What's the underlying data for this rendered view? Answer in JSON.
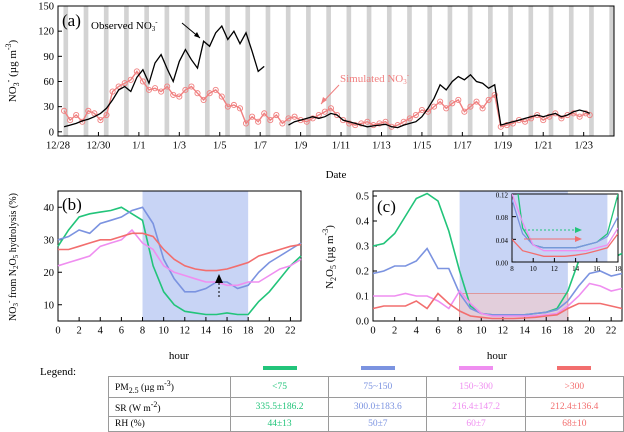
{
  "chart_data": [
    {
      "panel": "(a)",
      "type": "line",
      "xlabel": "Date",
      "ylabel": "NO3- (µg m-3)",
      "ylim": [
        -5,
        150
      ],
      "yticks": [
        0,
        30,
        60,
        90,
        120,
        150
      ],
      "xlim": [
        0,
        27.5
      ],
      "xtick_labels": [
        "12/28",
        "12/30",
        "1/1",
        "1/3",
        "1/5",
        "1/7",
        "1/9",
        "1/11",
        "1/13",
        "1/15",
        "1/17",
        "1/19",
        "1/21",
        "1/23"
      ],
      "xtick_values": [
        0,
        2,
        4,
        6,
        8,
        10,
        12,
        14,
        16,
        18,
        20,
        22,
        24,
        26
      ],
      "annotations": [
        "Observed NO3-",
        "Simulated NO3-"
      ],
      "series": [
        {
          "name": "Observed NO3-",
          "color": "#000000",
          "x": [
            0.3,
            0.6,
            0.9,
            1.2,
            1.5,
            1.8,
            2.1,
            2.4,
            2.7,
            3.0,
            3.3,
            3.6,
            3.9,
            4.2,
            4.5,
            4.8,
            5.1,
            5.4,
            5.7,
            6.0,
            6.3,
            6.6,
            6.9,
            7.2,
            7.5,
            7.8,
            8.1,
            8.4,
            8.7,
            9.0,
            9.3,
            9.6,
            9.9,
            10.2,
            10.5,
            10.8,
            11.1,
            11.4,
            11.7,
            12.0,
            12.3,
            12.6,
            12.9,
            13.2,
            13.5,
            13.8,
            14.1,
            14.4,
            14.7,
            15.0,
            15.3,
            15.6,
            15.9,
            16.2,
            16.5,
            16.8,
            17.1,
            17.4,
            17.7,
            18.0,
            18.3,
            18.6,
            18.9,
            19.2,
            19.5,
            19.8,
            20.1,
            20.4,
            20.7,
            21.0,
            21.3,
            21.6,
            21.9,
            22.2,
            22.5,
            22.8,
            23.1,
            23.4,
            23.7,
            24.0,
            24.3,
            24.6,
            24.9,
            25.2,
            25.5,
            25.8,
            26.1,
            26.3
          ],
          "y": [
            6,
            8,
            10,
            13,
            15,
            18,
            22,
            28,
            38,
            50,
            54,
            48,
            65,
            74,
            58,
            82,
            92,
            75,
            60,
            84,
            98,
            86,
            76,
            108,
            102,
            118,
            126,
            110,
            120,
            105,
            118,
            96,
            72,
            78,
            null,
            null,
            null,
            8,
            12,
            14,
            16,
            18,
            16,
            18,
            22,
            20,
            14,
            12,
            10,
            8,
            6,
            7,
            8,
            9,
            6,
            5,
            8,
            10,
            12,
            18,
            28,
            40,
            56,
            50,
            60,
            66,
            62,
            68,
            60,
            58,
            52,
            56,
            8,
            10,
            12,
            14,
            16,
            18,
            20,
            18,
            20,
            22,
            18,
            20,
            24,
            26,
            24,
            22
          ]
        },
        {
          "name": "Simulated NO3-",
          "color": "#f08080",
          "x": [
            0.3,
            0.6,
            0.9,
            1.2,
            1.5,
            1.8,
            2.1,
            2.4,
            2.7,
            3.0,
            3.3,
            3.6,
            3.9,
            4.2,
            4.5,
            4.8,
            5.1,
            5.4,
            5.7,
            6.0,
            6.3,
            6.6,
            6.9,
            7.2,
            7.5,
            7.8,
            8.1,
            8.4,
            8.7,
            9.0,
            9.3,
            9.6,
            9.9,
            10.2,
            10.5,
            10.8,
            11.1,
            11.4,
            11.7,
            12.0,
            12.3,
            12.6,
            12.9,
            13.2,
            13.5,
            13.8,
            14.1,
            14.4,
            14.7,
            15.0,
            15.3,
            15.6,
            15.9,
            16.2,
            16.5,
            16.8,
            17.1,
            17.4,
            17.7,
            18.0,
            18.3,
            18.6,
            18.9,
            19.2,
            19.5,
            19.8,
            20.1,
            20.4,
            20.7,
            21.0,
            21.3,
            21.6,
            21.9,
            22.2,
            22.5,
            22.8,
            23.1,
            23.4,
            23.7,
            24.0,
            24.3,
            24.6,
            24.9,
            25.2,
            25.5,
            25.8,
            26.1,
            26.3
          ],
          "y": [
            25,
            14,
            20,
            12,
            25,
            22,
            14,
            20,
            48,
            54,
            58,
            62,
            72,
            60,
            50,
            52,
            48,
            54,
            44,
            42,
            50,
            54,
            46,
            38,
            46,
            50,
            42,
            30,
            32,
            28,
            10,
            18,
            12,
            22,
            14,
            20,
            10,
            16,
            18,
            14,
            12,
            16,
            20,
            24,
            28,
            20,
            14,
            10,
            8,
            10,
            12,
            8,
            10,
            12,
            6,
            8,
            12,
            16,
            20,
            26,
            24,
            30,
            36,
            28,
            34,
            38,
            24,
            30,
            36,
            28,
            38,
            44,
            6,
            8,
            10,
            14,
            12,
            16,
            20,
            14,
            18,
            22,
            16,
            20,
            22,
            18,
            22,
            20
          ]
        }
      ]
    },
    {
      "panel": "(b)",
      "type": "line",
      "xlabel": "hour",
      "ylabel": "NO3- from N2O5 hydrolysis (%)",
      "xlim": [
        0,
        23
      ],
      "ylim": [
        5,
        45
      ],
      "xticks": [
        0,
        2,
        4,
        6,
        8,
        10,
        12,
        14,
        16,
        18,
        20,
        22
      ],
      "yticks": [
        10,
        20,
        30,
        40
      ],
      "shaded_hours": [
        8,
        18
      ],
      "series": [
        {
          "color": "#22c47a",
          "values": [
            28,
            33,
            37,
            38,
            38.5,
            39,
            40,
            38,
            36,
            22,
            14,
            10,
            8,
            7.5,
            7,
            7,
            7.5,
            7,
            7,
            11,
            14,
            18,
            22,
            25
          ]
        },
        {
          "color": "#7b93e0",
          "values": [
            30,
            31,
            33,
            32,
            35,
            36,
            37,
            39,
            40,
            35,
            24,
            18,
            14,
            14,
            15,
            17,
            17,
            15,
            16,
            20,
            23,
            25,
            27,
            29
          ]
        },
        {
          "color": "#ef8ef0",
          "values": [
            22,
            23,
            24,
            25,
            28,
            29,
            30,
            33,
            29,
            27,
            22,
            20,
            19,
            18,
            17,
            17,
            16,
            16,
            17,
            17,
            19,
            21,
            22,
            24
          ]
        },
        {
          "color": "#f26e6e",
          "values": [
            27,
            27,
            28,
            29,
            30,
            30,
            31,
            32,
            32,
            31,
            27,
            24,
            22,
            21,
            20.5,
            20.5,
            21,
            22,
            23,
            25,
            26,
            27,
            28,
            28.5
          ]
        }
      ]
    },
    {
      "panel": "(c)",
      "type": "line",
      "xlabel": "hour",
      "ylabel": "N2O5 (µg m-3)",
      "xlim": [
        0,
        23
      ],
      "ylim": [
        0,
        0.52
      ],
      "xticks": [
        0,
        2,
        4,
        6,
        8,
        10,
        12,
        14,
        16,
        18,
        20,
        22
      ],
      "yticks": [
        0.0,
        0.1,
        0.2,
        0.3,
        0.4,
        0.5
      ],
      "shaded_hours": [
        8,
        18
      ],
      "inset": {
        "xlim": [
          8,
          18
        ],
        "ylim": [
          0,
          0.12
        ],
        "xticks": [
          8,
          10,
          12,
          14,
          16,
          18
        ],
        "yticks": [
          0.0,
          0.04,
          0.08,
          0.12
        ]
      },
      "series": [
        {
          "color": "#22c47a",
          "values": [
            0.3,
            0.31,
            0.35,
            0.42,
            0.49,
            0.51,
            0.48,
            0.36,
            0.2,
            0.06,
            0.03,
            0.025,
            0.025,
            0.025,
            0.025,
            0.03,
            0.035,
            0.05,
            0.12,
            0.24,
            0.28,
            0.26,
            0.25,
            0.27
          ]
        },
        {
          "color": "#7b93e0",
          "values": [
            0.19,
            0.2,
            0.22,
            0.22,
            0.24,
            0.29,
            0.21,
            0.21,
            0.11,
            0.05,
            0.03,
            0.025,
            0.025,
            0.025,
            0.025,
            0.03,
            0.035,
            0.045,
            0.08,
            0.14,
            0.19,
            0.2,
            0.18,
            0.19
          ]
        },
        {
          "color": "#ef8ef0",
          "values": [
            0.1,
            0.1,
            0.1,
            0.11,
            0.1,
            0.1,
            0.08,
            0.05,
            0.12,
            0.07,
            0.03,
            0.02,
            0.02,
            0.02,
            0.02,
            0.02,
            0.025,
            0.03,
            0.06,
            0.1,
            0.15,
            0.14,
            0.12,
            0.13
          ]
        },
        {
          "color": "#f26e6e",
          "values": [
            0.05,
            0.06,
            0.06,
            0.06,
            0.08,
            0.05,
            0.11,
            0.07,
            0.04,
            0.02,
            0.015,
            0.01,
            0.01,
            0.01,
            0.012,
            0.015,
            0.02,
            0.025,
            0.05,
            0.07,
            0.07,
            0.07,
            0.06,
            0.05
          ]
        }
      ]
    }
  ],
  "panel_labels": {
    "a": "(a)",
    "b": "(b)",
    "c": "(c)"
  },
  "panel_a": {
    "ylabel_main": "NO",
    "ylabel_sub": "3",
    "ylabel_sup": "-",
    "ylabel_unit": " (µg m",
    "ylabel_unit_sup": "-3",
    "ylabel_close": ")",
    "xlabel": "Date",
    "obs_label": "Observed NO",
    "obs_sub": "3",
    "obs_sup": "-",
    "sim_label": "Simulated NO",
    "sim_sub": "3",
    "sim_sup": "-"
  },
  "panel_b": {
    "ylabel_a": "NO",
    "ylabel_sub1": "3",
    "ylabel_sup1": "-",
    "ylabel_b": " from N",
    "ylabel_sub2": "2",
    "ylabel_c": "O",
    "ylabel_sub3": "5",
    "ylabel_d": " hydrolysis (%)",
    "xlabel": "hour"
  },
  "panel_c": {
    "ylabel_a": "N",
    "ylabel_sub1": "2",
    "ylabel_b": "O",
    "ylabel_sub2": "5",
    "ylabel_c": " (µg m",
    "ylabel_sup": "-3",
    "ylabel_d": ")",
    "xlabel": "hour"
  },
  "legend": {
    "title": "Legend:",
    "colors": [
      "#22c47a",
      "#7b93e0",
      "#ef8ef0",
      "#f26e6e"
    ],
    "rows": [
      {
        "label_a": "PM",
        "label_sub": "2.5",
        "label_b": " (µg m",
        "label_sup": "-3",
        "label_c": ")",
        "cells": [
          "<75",
          "75~150",
          "150~300",
          ">300"
        ]
      },
      {
        "label_a": "SR (W m",
        "label_sub": "",
        "label_b": "",
        "label_sup": "-2",
        "label_c": ")",
        "cells": [
          "335.5±186.2",
          "300.0±183.6",
          "216.4±147.2",
          "212.4±136.4"
        ]
      },
      {
        "label_a": "RH (%)",
        "label_sub": "",
        "label_b": "",
        "label_sup": "",
        "label_c": "",
        "cells": [
          "44±13",
          "50±7",
          "60±7",
          "68±10"
        ]
      }
    ]
  }
}
